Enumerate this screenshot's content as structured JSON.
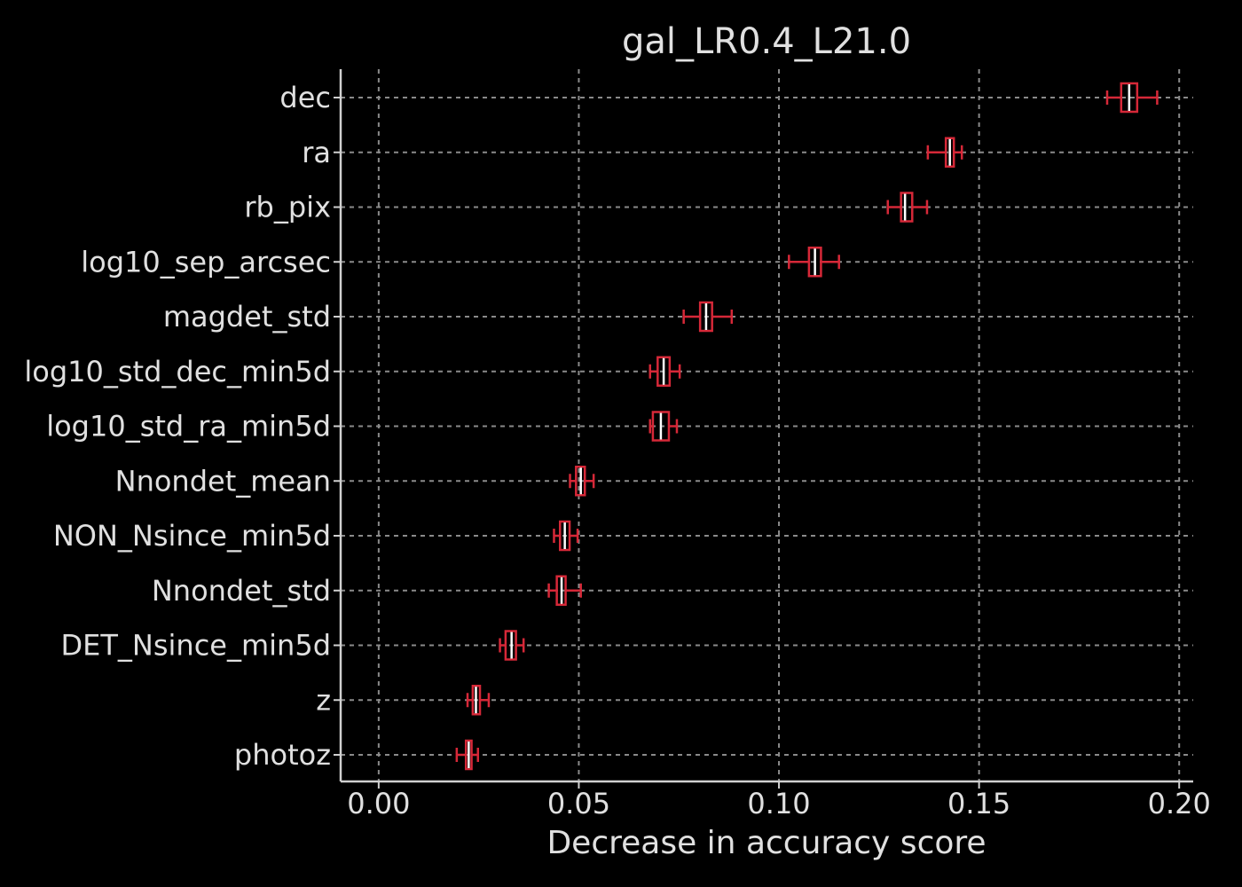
{
  "chart_data": {
    "type": "boxplot",
    "orientation": "horizontal",
    "title": "gal_LR0.4_L21.0",
    "xlabel": "Decrease in accuracy score",
    "ylabel": "",
    "xlim": [
      -0.0095,
      0.2035
    ],
    "x_ticks": [
      0.0,
      0.05,
      0.1,
      0.15,
      0.2
    ],
    "x_tick_labels": [
      "0.00",
      "0.05",
      "0.10",
      "0.15",
      "0.20"
    ],
    "grid": true,
    "legend": null,
    "colors": {
      "background": "#000000",
      "box": "#d62838",
      "median": "#ffffff",
      "grid": "#8a8a8a",
      "axis": "#d0d0d0",
      "text": "#e0e0e0"
    },
    "categories": [
      "dec",
      "ra",
      "rb_pix",
      "log10_sep_arcsec",
      "magdet_std",
      "log10_std_dec_min5d",
      "log10_std_ra_min5d",
      "Nnondet_mean",
      "NON_Nsince_min5d",
      "Nnondet_std",
      "DET_Nsince_min5d",
      "z",
      "photoz"
    ],
    "boxes": [
      {
        "label": "dec",
        "whislo": 0.182,
        "q1": 0.1855,
        "med": 0.1875,
        "q3": 0.1895,
        "whishi": 0.1945
      },
      {
        "label": "ra",
        "whislo": 0.1372,
        "q1": 0.1417,
        "med": 0.1427,
        "q3": 0.1437,
        "whishi": 0.1457
      },
      {
        "label": "rb_pix",
        "whislo": 0.1272,
        "q1": 0.1305,
        "med": 0.1315,
        "q3": 0.1333,
        "whishi": 0.137
      },
      {
        "label": "log10_sep_arcsec",
        "whislo": 0.1025,
        "q1": 0.1075,
        "med": 0.109,
        "q3": 0.1105,
        "whishi": 0.115
      },
      {
        "label": "magdet_std",
        "whislo": 0.0762,
        "q1": 0.0803,
        "med": 0.0818,
        "q3": 0.0833,
        "whishi": 0.0882
      },
      {
        "label": "log10_std_dec_min5d",
        "whislo": 0.0678,
        "q1": 0.0697,
        "med": 0.0712,
        "q3": 0.0727,
        "whishi": 0.0752
      },
      {
        "label": "log10_std_ra_min5d",
        "whislo": 0.0678,
        "q1": 0.0685,
        "med": 0.0705,
        "q3": 0.0725,
        "whishi": 0.0745
      },
      {
        "label": "Nnondet_mean",
        "whislo": 0.0478,
        "q1": 0.0493,
        "med": 0.0505,
        "q3": 0.0515,
        "whishi": 0.0537
      },
      {
        "label": "NON_Nsince_min5d",
        "whislo": 0.0438,
        "q1": 0.0453,
        "med": 0.0465,
        "q3": 0.0477,
        "whishi": 0.0497
      },
      {
        "label": "Nnondet_std",
        "whislo": 0.0425,
        "q1": 0.0445,
        "med": 0.0457,
        "q3": 0.0467,
        "whishi": 0.0505
      },
      {
        "label": "DET_Nsince_min5d",
        "whislo": 0.0303,
        "q1": 0.0317,
        "med": 0.0332,
        "q3": 0.0343,
        "whishi": 0.0362
      },
      {
        "label": "z",
        "whislo": 0.0222,
        "q1": 0.0235,
        "med": 0.0243,
        "q3": 0.0253,
        "whishi": 0.0275
      },
      {
        "label": "photoz",
        "whislo": 0.0195,
        "q1": 0.0218,
        "med": 0.0225,
        "q3": 0.0232,
        "whishi": 0.0248
      }
    ]
  }
}
